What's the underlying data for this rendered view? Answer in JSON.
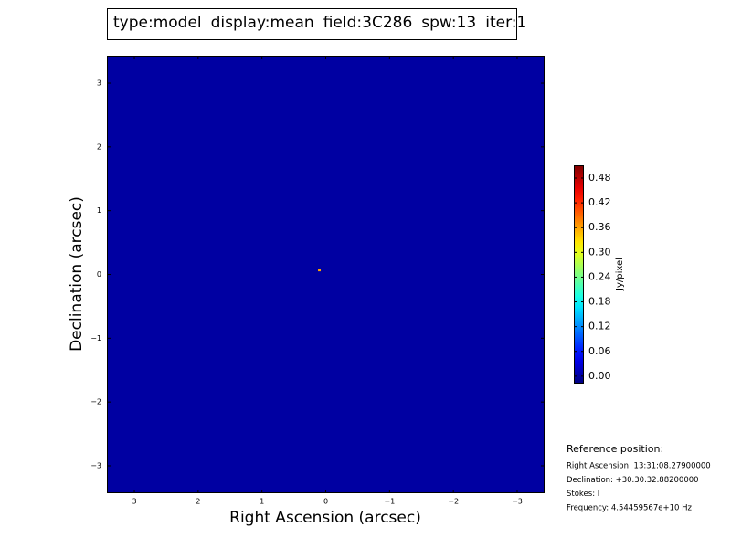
{
  "chart_data": {
    "type": "image",
    "title_parts": [
      {
        "text": "type:model",
        "color": "#000000"
      },
      {
        "text": "display:mean",
        "color": "#ff0000"
      },
      {
        "text": "field:3C286",
        "color": "#000000"
      },
      {
        "text": "spw:13",
        "color": "#000000"
      },
      {
        "text": "iter:1",
        "color": "#000000"
      }
    ],
    "x_label": "Right Ascension (arcsec)",
    "y_label": "Declination (arcsec)",
    "xlim": [
      3.43,
      -3.43
    ],
    "ylim": [
      -3.43,
      3.43
    ],
    "xticks": [
      3,
      2,
      1,
      0,
      {
        "value": -1,
        "label": "−1"
      },
      {
        "value": -2,
        "label": "−2"
      },
      {
        "value": -3,
        "label": "−3"
      }
    ],
    "yticks": [
      3,
      2,
      1,
      0,
      {
        "value": -1,
        "label": "−1"
      },
      {
        "value": -2,
        "label": "−2"
      },
      {
        "value": -3,
        "label": "−3"
      }
    ],
    "colormap": "jet",
    "background": 0,
    "x": [
      0.1
    ],
    "y": [
      0.07
    ],
    "values": [
      0.36
    ],
    "clim": [
      -0.018,
      0.511
    ],
    "cticks": [
      {
        "value": 0,
        "label": "0.00"
      },
      {
        "value": 0.06,
        "label": "0.06"
      },
      {
        "value": 0.12,
        "label": "0.12"
      },
      {
        "value": 0.18,
        "label": "0.18"
      },
      {
        "value": 0.24,
        "label": "0.24"
      },
      {
        "value": 0.3,
        "label": "0.30"
      },
      {
        "value": 0.36,
        "label": "0.36"
      },
      {
        "value": 0.42,
        "label": "0.42"
      },
      {
        "value": 0.48,
        "label": "0.48"
      }
    ],
    "colorbar_label": "Jy/pixel",
    "info": {
      "title": "Reference position:",
      "lines": [
        "Right Ascension: 13:31:08.27900000",
        "Declination: +30.30.32.88200000",
        "Stokes: I",
        "Frequency: 4.54459567e+10 Hz"
      ]
    }
  }
}
